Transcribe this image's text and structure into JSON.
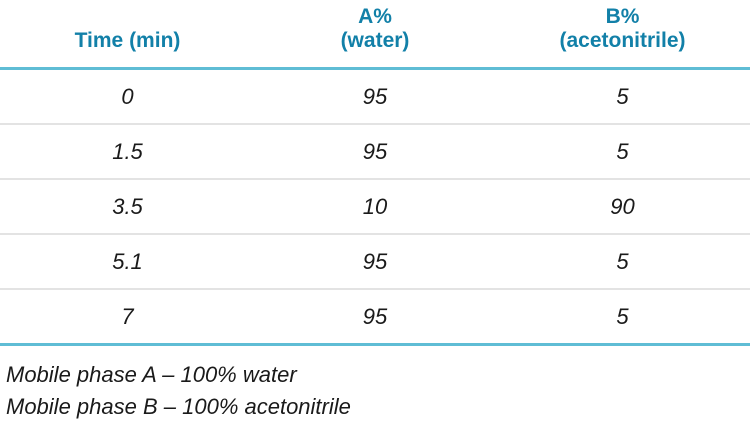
{
  "colors": {
    "header_text": "#1280a8",
    "accent_line": "#5fbdd5",
    "row_divider": "#e3e3e3",
    "body_text": "#1a1a1a",
    "background": "#ffffff"
  },
  "table": {
    "header": {
      "time": "Time (min)",
      "a": "A%\n(water)",
      "b": "B%\n(acetonitrile)"
    },
    "rows": [
      {
        "time": "0",
        "a": "95",
        "b": "5"
      },
      {
        "time": "1.5",
        "a": "95",
        "b": "5"
      },
      {
        "time": "3.5",
        "a": "10",
        "b": "90"
      },
      {
        "time": "5.1",
        "a": "95",
        "b": "5"
      },
      {
        "time": "7",
        "a": "95",
        "b": "5"
      }
    ]
  },
  "footnotes": {
    "mobile_phase_a": "Mobile phase A – 100% water",
    "mobile_phase_b": "Mobile phase B – 100% acetonitrile"
  }
}
